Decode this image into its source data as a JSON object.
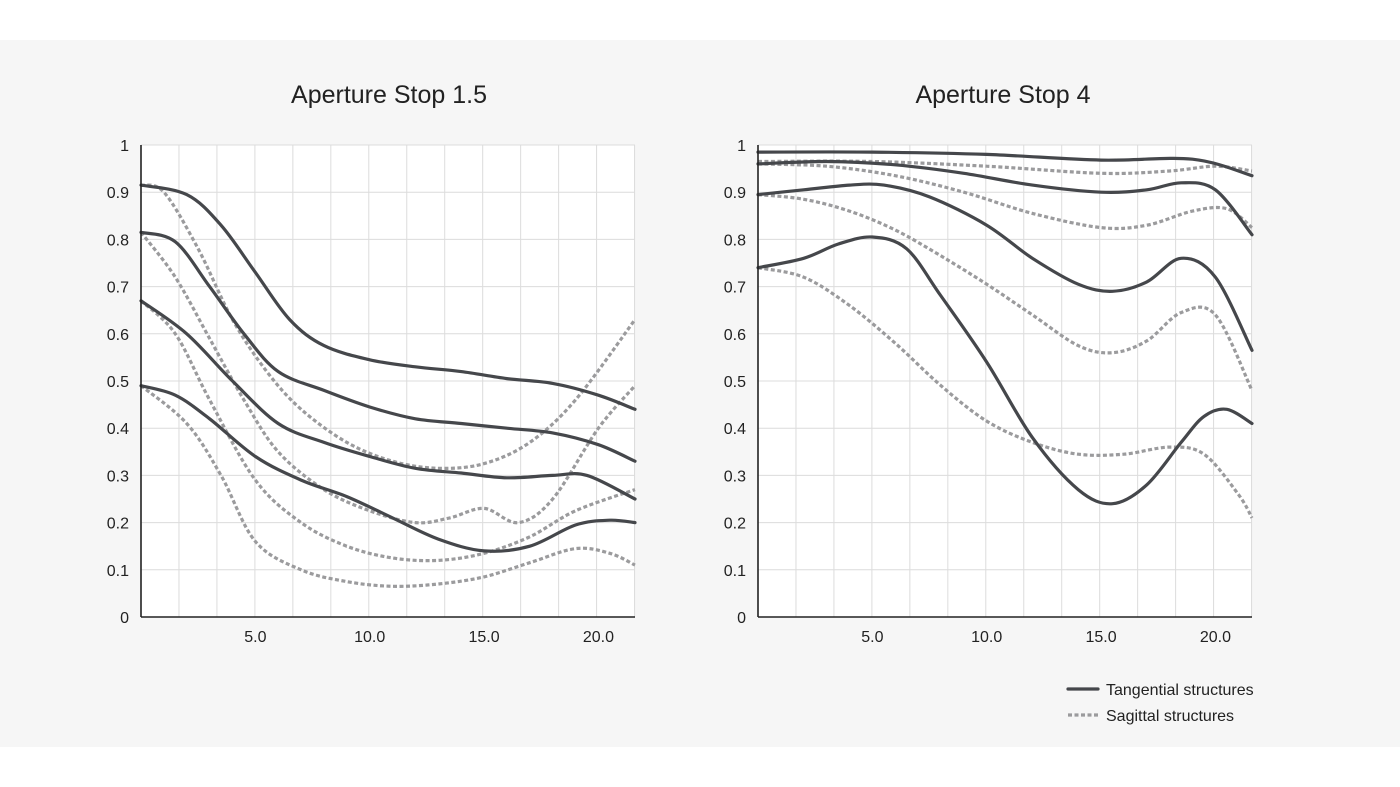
{
  "chart_data": [
    {
      "type": "line",
      "title": "Aperture Stop 1.5",
      "xlabel": "",
      "ylabel": "",
      "xlim": [
        0,
        21.6
      ],
      "ylim": [
        0,
        1
      ],
      "x_ticks": [
        5,
        10,
        15,
        20
      ],
      "x_tick_labels": [
        "5.0",
        "10.0",
        "15.0",
        "20.0"
      ],
      "y_ticks": [
        0,
        0.1,
        0.2,
        0.3,
        0.4,
        0.5,
        0.6,
        0.7,
        0.8,
        0.9,
        1
      ],
      "y_tick_labels": [
        "0",
        "0.1",
        "0.2",
        "0.3",
        "0.4",
        "0.5",
        "0.6",
        "0.7",
        "0.8",
        "0.9",
        "1"
      ],
      "grid": true,
      "series": [
        {
          "style": "tangential",
          "x": [
            0,
            2,
            3.5,
            5,
            6.5,
            8,
            10,
            12,
            14,
            16,
            18,
            20,
            21.6
          ],
          "y": [
            0.915,
            0.895,
            0.83,
            0.73,
            0.63,
            0.575,
            0.545,
            0.53,
            0.52,
            0.505,
            0.495,
            0.47,
            0.44
          ]
        },
        {
          "style": "tangential",
          "x": [
            0,
            1.5,
            3,
            4.5,
            6,
            8,
            10,
            12,
            14,
            16,
            18,
            20,
            21.6
          ],
          "y": [
            0.815,
            0.795,
            0.7,
            0.6,
            0.52,
            0.48,
            0.445,
            0.42,
            0.41,
            0.4,
            0.39,
            0.365,
            0.33
          ]
        },
        {
          "style": "tangential",
          "x": [
            0,
            2,
            4,
            6,
            8,
            10,
            12,
            14,
            16,
            18,
            19.5,
            21.6
          ],
          "y": [
            0.67,
            0.6,
            0.5,
            0.41,
            0.37,
            0.34,
            0.315,
            0.305,
            0.295,
            0.3,
            0.3,
            0.25
          ]
        },
        {
          "style": "tangential",
          "x": [
            0,
            1.5,
            3,
            5,
            7,
            9,
            11,
            13,
            15,
            17,
            19,
            20.5,
            21.6
          ],
          "y": [
            0.49,
            0.47,
            0.42,
            0.34,
            0.29,
            0.255,
            0.21,
            0.165,
            0.14,
            0.15,
            0.195,
            0.205,
            0.2
          ]
        },
        {
          "style": "sagittal",
          "x": [
            0,
            1,
            2.5,
            4,
            5.5,
            7,
            9,
            11,
            13,
            15,
            17,
            19,
            21.6
          ],
          "y": [
            0.915,
            0.9,
            0.78,
            0.63,
            0.52,
            0.44,
            0.37,
            0.33,
            0.315,
            0.325,
            0.37,
            0.46,
            0.63
          ]
        },
        {
          "style": "sagittal",
          "x": [
            0,
            1.5,
            3,
            4.5,
            6,
            8,
            10,
            12,
            13.5,
            15,
            16.5,
            18,
            20,
            21.6
          ],
          "y": [
            0.815,
            0.72,
            0.59,
            0.46,
            0.35,
            0.27,
            0.225,
            0.2,
            0.21,
            0.23,
            0.2,
            0.25,
            0.4,
            0.49
          ]
        },
        {
          "style": "sagittal",
          "x": [
            0,
            1.5,
            3,
            5,
            7,
            9,
            11,
            13,
            15,
            17,
            19,
            21.6
          ],
          "y": [
            0.67,
            0.6,
            0.46,
            0.29,
            0.2,
            0.15,
            0.125,
            0.12,
            0.135,
            0.17,
            0.225,
            0.27
          ]
        },
        {
          "style": "sagittal",
          "x": [
            0,
            2,
            3.5,
            5,
            7,
            9,
            11,
            13,
            15,
            17,
            19,
            20.5,
            21.6
          ],
          "y": [
            0.49,
            0.41,
            0.3,
            0.16,
            0.1,
            0.075,
            0.065,
            0.07,
            0.085,
            0.115,
            0.145,
            0.135,
            0.11
          ]
        }
      ]
    },
    {
      "type": "line",
      "title": "Aperture Stop 4",
      "xlabel": "",
      "ylabel": "",
      "xlim": [
        0,
        21.6
      ],
      "ylim": [
        0,
        1
      ],
      "x_ticks": [
        5,
        10,
        15,
        20
      ],
      "x_tick_labels": [
        "5.0",
        "10.0",
        "15.0",
        "20.0"
      ],
      "y_ticks": [
        0,
        0.1,
        0.2,
        0.3,
        0.4,
        0.5,
        0.6,
        0.7,
        0.8,
        0.9,
        1
      ],
      "y_tick_labels": [
        "0",
        "0.1",
        "0.2",
        "0.3",
        "0.4",
        "0.5",
        "0.6",
        "0.7",
        "0.8",
        "0.9",
        "1"
      ],
      "grid": true,
      "series": [
        {
          "style": "tangential",
          "x": [
            0,
            5,
            10,
            15,
            19,
            21.6
          ],
          "y": [
            0.985,
            0.985,
            0.98,
            0.968,
            0.97,
            0.935
          ]
        },
        {
          "style": "tangential",
          "x": [
            0,
            3,
            6,
            9,
            12,
            15,
            17,
            18.5,
            20,
            21.6
          ],
          "y": [
            0.96,
            0.965,
            0.958,
            0.94,
            0.915,
            0.9,
            0.905,
            0.92,
            0.905,
            0.81
          ]
        },
        {
          "style": "tangential",
          "x": [
            0,
            2,
            4,
            5.5,
            7.5,
            10,
            12,
            14,
            15.5,
            17,
            18.5,
            20,
            21.6
          ],
          "y": [
            0.895,
            0.905,
            0.915,
            0.915,
            0.89,
            0.83,
            0.76,
            0.705,
            0.69,
            0.71,
            0.76,
            0.72,
            0.565
          ]
        },
        {
          "style": "tangential",
          "x": [
            0,
            2,
            3.5,
            5,
            6.5,
            8,
            10,
            12,
            14,
            15.5,
            17,
            18.5,
            19.5,
            20.5,
            21.6
          ],
          "y": [
            0.74,
            0.76,
            0.79,
            0.805,
            0.78,
            0.68,
            0.54,
            0.38,
            0.27,
            0.24,
            0.28,
            0.37,
            0.425,
            0.44,
            0.41
          ]
        },
        {
          "style": "sagittal",
          "x": [
            0,
            5,
            10,
            15,
            18,
            20,
            21.6
          ],
          "y": [
            0.965,
            0.965,
            0.955,
            0.94,
            0.945,
            0.955,
            0.945
          ]
        },
        {
          "style": "sagittal",
          "x": [
            0,
            3,
            6,
            9,
            12,
            15,
            17,
            19,
            20.5,
            21.6
          ],
          "y": [
            0.96,
            0.955,
            0.935,
            0.9,
            0.855,
            0.825,
            0.83,
            0.86,
            0.865,
            0.825
          ]
        },
        {
          "style": "sagittal",
          "x": [
            0,
            2,
            4,
            6,
            8,
            10,
            12,
            14,
            15.5,
            17,
            18.5,
            20,
            21.6
          ],
          "y": [
            0.895,
            0.885,
            0.86,
            0.82,
            0.765,
            0.705,
            0.64,
            0.575,
            0.56,
            0.585,
            0.645,
            0.64,
            0.48
          ]
        },
        {
          "style": "sagittal",
          "x": [
            0,
            2,
            4,
            6,
            8,
            10,
            12,
            14,
            16,
            18,
            19.5,
            21,
            21.6
          ],
          "y": [
            0.74,
            0.72,
            0.66,
            0.58,
            0.49,
            0.415,
            0.37,
            0.345,
            0.345,
            0.36,
            0.345,
            0.26,
            0.21
          ]
        }
      ]
    }
  ],
  "legend": {
    "placement": "bottom-right",
    "items": [
      {
        "label": "Tangential structures",
        "style": "tangential",
        "color": "#45474b"
      },
      {
        "label": "Sagittal structures",
        "style": "sagittal",
        "color": "#9b9b9d"
      }
    ]
  },
  "colors": {
    "tangential": "#45474b",
    "sagittal": "#9b9b9d",
    "grid": "#dcdcdc",
    "background": "#f6f6f6"
  }
}
